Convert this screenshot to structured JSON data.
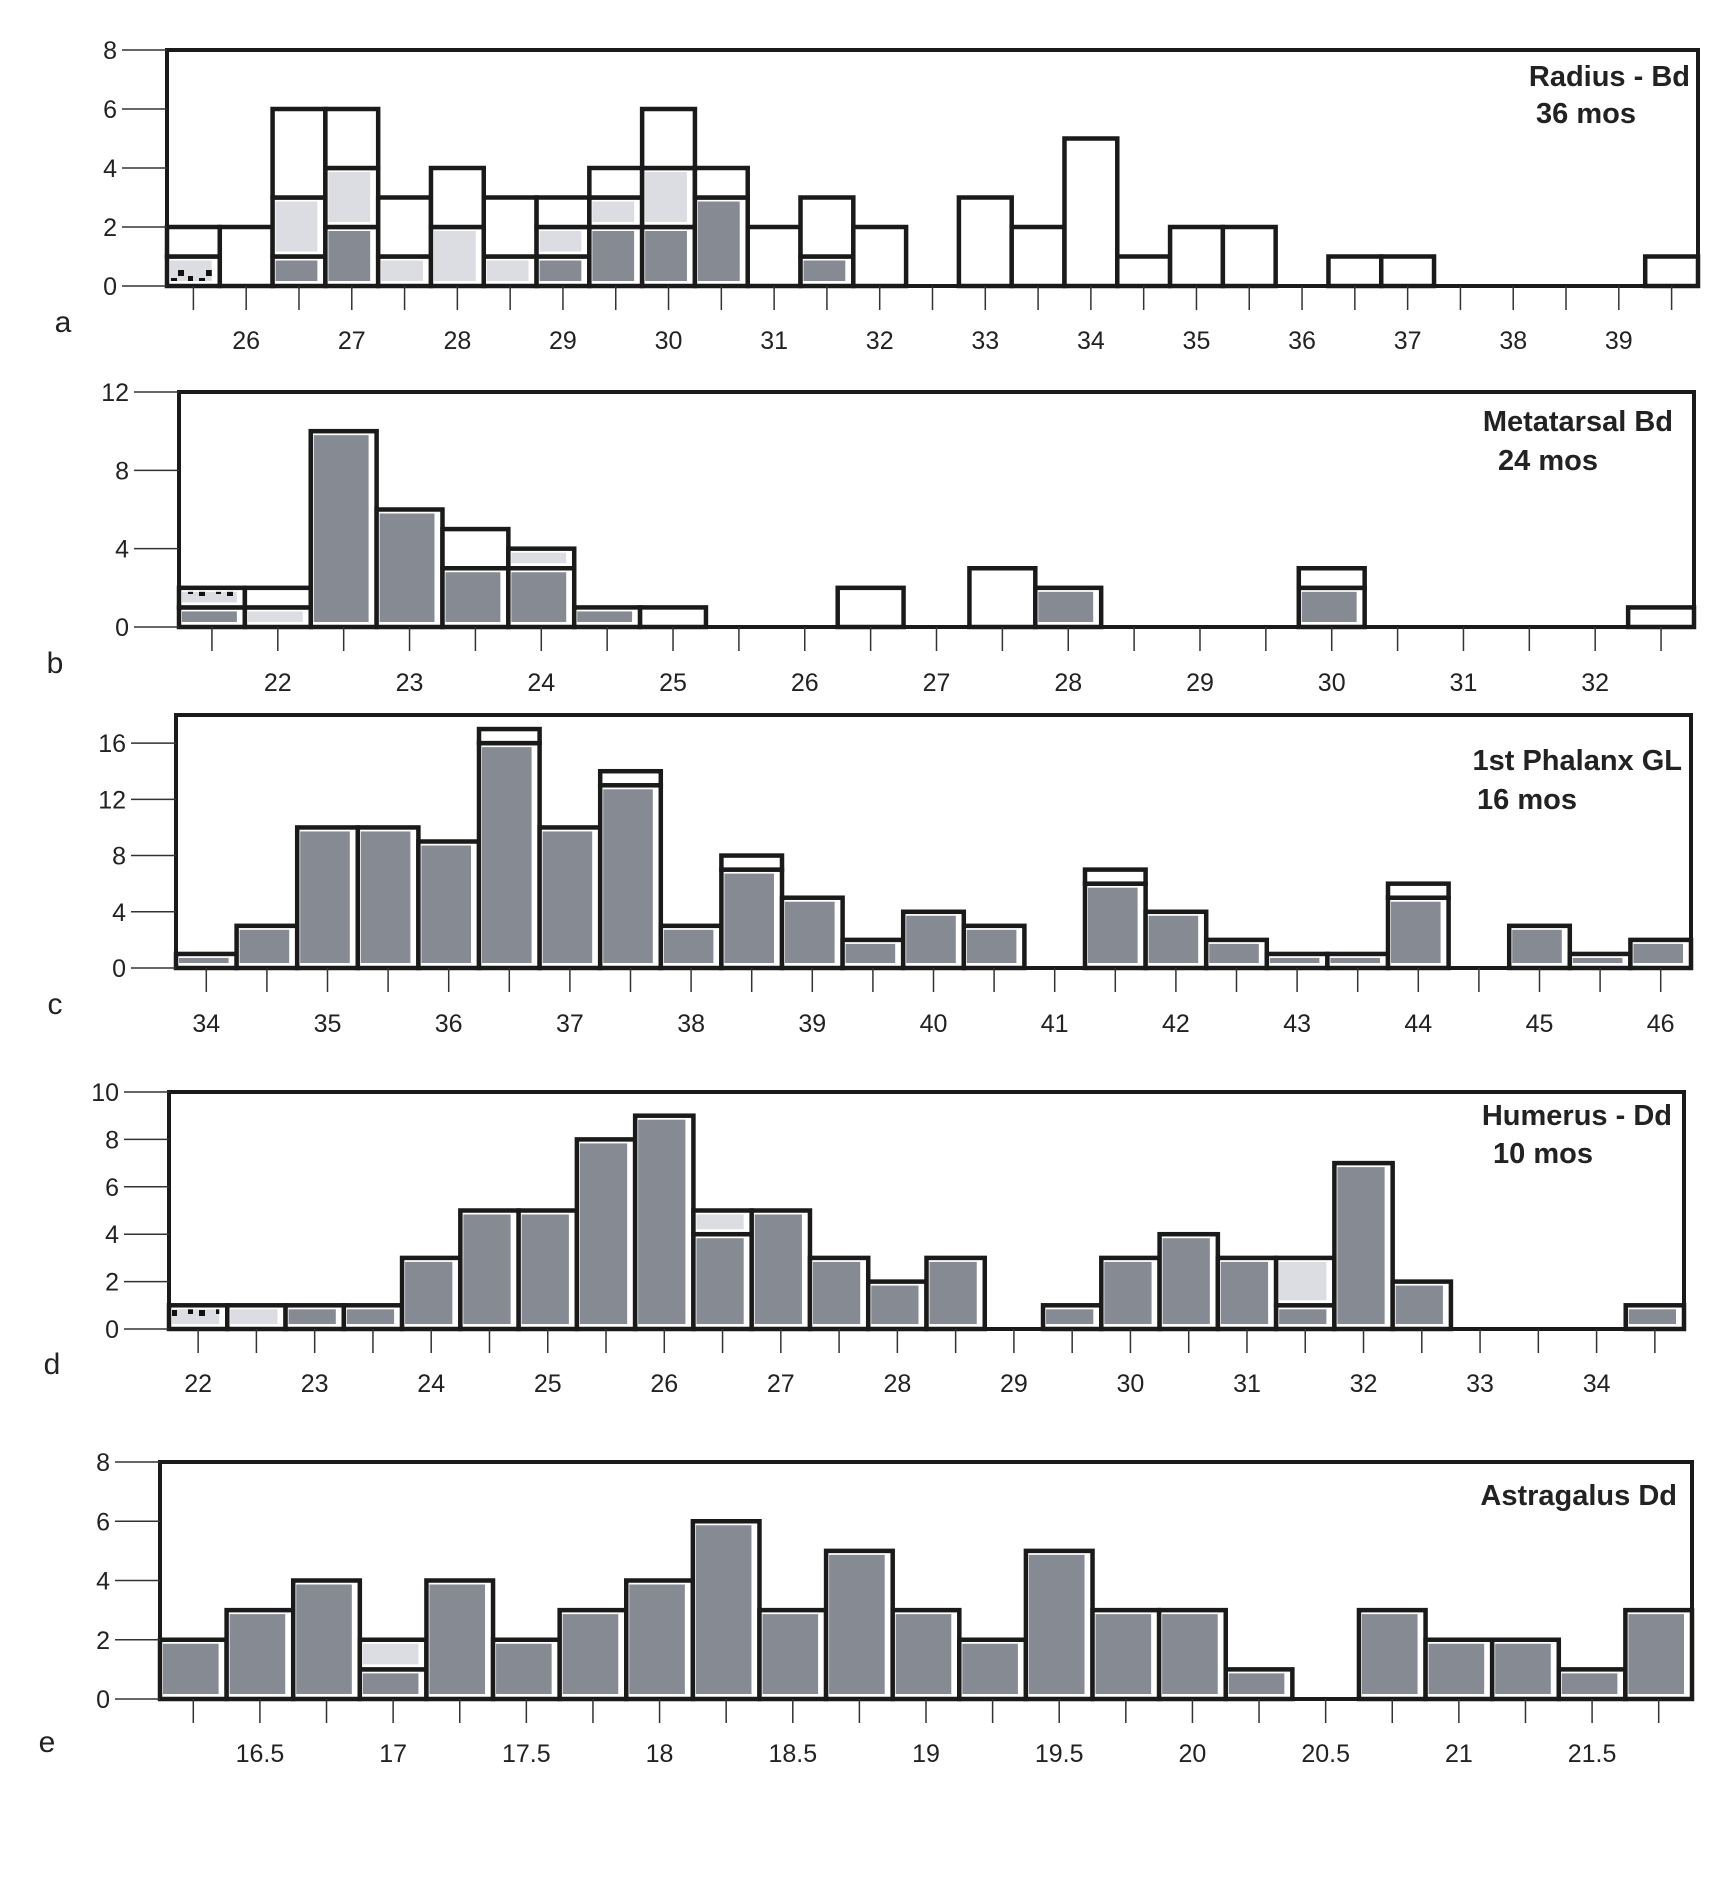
{
  "colors": {
    "fused": "#868b93",
    "fusing": "#dcdde2",
    "unfused": "#ffffff",
    "neonatal_pattern_bg": "#dcdde2",
    "outline": "#1a1a1a"
  },
  "chart_data": [
    {
      "type": "bar",
      "stacked": true,
      "panel_letter": "a",
      "title_lines": [
        "Radius - Bd",
        "36 mos"
      ],
      "ylim": [
        0,
        8
      ],
      "yticks": [
        0,
        2,
        4,
        6,
        8
      ],
      "x": [
        25.5,
        26,
        26.5,
        27,
        27.5,
        28,
        28.5,
        29,
        29.5,
        30,
        30.5,
        31,
        31.5,
        32,
        32.5,
        33,
        33.5,
        34,
        34.5,
        35,
        35.5,
        36,
        36.5,
        37,
        37.5,
        38,
        38.5,
        39,
        39.5
      ],
      "xticklabels": [
        26,
        27,
        28,
        29,
        30,
        31,
        32,
        33,
        34,
        35,
        36,
        37,
        38,
        39
      ],
      "series": [
        {
          "fill": "#868b93",
          "values": [
            0,
            0,
            1,
            2,
            0,
            0,
            0,
            1,
            2,
            2,
            3,
            0,
            1,
            0,
            0,
            0,
            0,
            0,
            0,
            0,
            0,
            0,
            0,
            0,
            0,
            0,
            0,
            0,
            0
          ]
        },
        {
          "fill": "pattern",
          "values": [
            1,
            0,
            0,
            0,
            0,
            0,
            0,
            0,
            0,
            0,
            0,
            0,
            0,
            0,
            0,
            0,
            0,
            0,
            0,
            0,
            0,
            0,
            0,
            0,
            0,
            0,
            0,
            0,
            0
          ]
        },
        {
          "fill": "#dcdde2",
          "values": [
            0,
            0,
            2,
            2,
            1,
            2,
            1,
            1,
            1,
            2,
            0,
            0,
            0,
            0,
            0,
            0,
            0,
            0,
            0,
            0,
            0,
            0,
            0,
            0,
            0,
            0,
            0,
            0,
            0
          ]
        },
        {
          "fill": "#ffffff",
          "values": [
            1,
            2,
            3,
            2,
            2,
            2,
            2,
            1,
            1,
            2,
            1,
            2,
            2,
            2,
            0,
            3,
            2,
            5,
            1,
            2,
            2,
            0,
            1,
            1,
            0,
            0,
            0,
            0,
            1
          ]
        }
      ]
    },
    {
      "type": "bar",
      "stacked": true,
      "panel_letter": "b",
      "title_lines": [
        "Metatarsal Bd",
        "24 mos"
      ],
      "ylim": [
        0,
        12
      ],
      "yticks": [
        0,
        4,
        8,
        12
      ],
      "x": [
        21.5,
        22,
        22.5,
        23,
        23.5,
        24,
        24.5,
        25,
        25.5,
        26,
        26.5,
        27,
        27.5,
        28,
        28.5,
        29,
        29.5,
        30,
        30.5,
        31,
        31.5,
        32,
        32.5
      ],
      "xticklabels": [
        22,
        23,
        24,
        25,
        26,
        27,
        28,
        29,
        30,
        31,
        32
      ],
      "series": [
        {
          "fill": "#868b93",
          "values": [
            1,
            0,
            10,
            6,
            3,
            3,
            1,
            0,
            0,
            0,
            0,
            0,
            0,
            2,
            0,
            0,
            0,
            2,
            0,
            0,
            0,
            0,
            0
          ]
        },
        {
          "fill": "pattern",
          "values": [
            1,
            0,
            0,
            0,
            0,
            0,
            0,
            0,
            0,
            0,
            0,
            0,
            0,
            0,
            0,
            0,
            0,
            0,
            0,
            0,
            0,
            0,
            0
          ]
        },
        {
          "fill": "#dcdde2",
          "values": [
            0,
            1,
            0,
            0,
            0,
            1,
            0,
            0,
            0,
            0,
            0,
            0,
            0,
            0,
            0,
            0,
            0,
            0,
            0,
            0,
            0,
            0,
            0
          ]
        },
        {
          "fill": "#ffffff",
          "values": [
            0,
            1,
            0,
            0,
            2,
            0,
            0,
            1,
            0,
            0,
            2,
            0,
            3,
            0,
            0,
            0,
            0,
            1,
            0,
            0,
            0,
            0,
            1
          ]
        }
      ]
    },
    {
      "type": "bar",
      "stacked": true,
      "panel_letter": "c",
      "title_lines": [
        "1st Phalanx GL",
        "16 mos"
      ],
      "ylim": [
        0,
        18
      ],
      "yticks": [
        0,
        4,
        8,
        12,
        16
      ],
      "x": [
        34,
        34.5,
        35,
        35.5,
        36,
        36.5,
        37,
        37.5,
        38,
        38.5,
        39,
        39.5,
        40,
        40.5,
        41,
        41.5,
        42,
        42.5,
        43,
        43.5,
        44,
        44.5,
        45,
        45.5,
        46
      ],
      "xticklabels": [
        34,
        35,
        36,
        37,
        38,
        39,
        40,
        41,
        42,
        43,
        44,
        45,
        46
      ],
      "series": [
        {
          "fill": "#868b93",
          "values": [
            1,
            3,
            10,
            10,
            9,
            16,
            10,
            13,
            3,
            7,
            5,
            2,
            4,
            3,
            0,
            6,
            4,
            2,
            1,
            1,
            5,
            0,
            3,
            1,
            2
          ]
        },
        {
          "fill": "#ffffff",
          "values": [
            0,
            0,
            0,
            0,
            0,
            1,
            0,
            1,
            0,
            1,
            0,
            0,
            0,
            0,
            0,
            1,
            0,
            0,
            0,
            0,
            1,
            0,
            0,
            0,
            0
          ]
        }
      ]
    },
    {
      "type": "bar",
      "stacked": true,
      "panel_letter": "d",
      "title_lines": [
        "Humerus - Dd",
        "10 mos"
      ],
      "ylim": [
        0,
        10
      ],
      "yticks": [
        0,
        2,
        4,
        6,
        8,
        10
      ],
      "x": [
        22,
        22.5,
        23,
        23.5,
        24,
        24.5,
        25,
        25.5,
        26,
        26.5,
        27,
        27.5,
        28,
        28.5,
        29,
        29.5,
        30,
        30.5,
        31,
        31.5,
        32,
        32.5,
        33,
        33.5,
        34,
        34.5
      ],
      "xticklabels": [
        22,
        23,
        24,
        25,
        26,
        27,
        28,
        29,
        30,
        31,
        32,
        33,
        34
      ],
      "series": [
        {
          "fill": "#868b93",
          "values": [
            0,
            0,
            1,
            1,
            3,
            5,
            5,
            8,
            9,
            4,
            5,
            3,
            2,
            3,
            0,
            1,
            3,
            4,
            3,
            1,
            7,
            2,
            0,
            0,
            0,
            1
          ]
        },
        {
          "fill": "pattern",
          "values": [
            1,
            0,
            0,
            0,
            0,
            0,
            0,
            0,
            0,
            0,
            0,
            0,
            0,
            0,
            0,
            0,
            0,
            0,
            0,
            0,
            0,
            0,
            0,
            0,
            0,
            0
          ]
        },
        {
          "fill": "#dcdde2",
          "values": [
            0,
            1,
            0,
            0,
            0,
            0,
            0,
            0,
            0,
            1,
            0,
            0,
            0,
            0,
            0,
            0,
            0,
            0,
            0,
            2,
            0,
            0,
            0,
            0,
            0,
            0
          ]
        }
      ]
    },
    {
      "type": "bar",
      "stacked": true,
      "panel_letter": "e",
      "title_lines": [
        "Astragalus Dd"
      ],
      "ylim": [
        0,
        8
      ],
      "yticks": [
        0,
        2,
        4,
        6,
        8
      ],
      "x": [
        16.25,
        16.5,
        16.75,
        17,
        17.25,
        17.5,
        17.75,
        18,
        18.25,
        18.5,
        18.75,
        19,
        19.25,
        19.5,
        19.75,
        20,
        20.25,
        20.5,
        20.75,
        21,
        21.25,
        21.5,
        21.75
      ],
      "xticklabels": [
        16.5,
        17,
        17.5,
        18,
        18.5,
        19,
        19.5,
        20,
        20.5,
        21,
        21.5
      ],
      "series": [
        {
          "fill": "#868b93",
          "values": [
            2,
            3,
            4,
            1,
            4,
            2,
            3,
            4,
            6,
            3,
            5,
            3,
            2,
            5,
            3,
            3,
            1,
            0,
            3,
            2,
            2,
            1,
            3
          ]
        },
        {
          "fill": "#dcdde2",
          "values": [
            0,
            0,
            0,
            1,
            0,
            0,
            0,
            0,
            0,
            0,
            0,
            0,
            0,
            0,
            0,
            0,
            0,
            0,
            0,
            0,
            0,
            0,
            0
          ]
        }
      ]
    }
  ]
}
